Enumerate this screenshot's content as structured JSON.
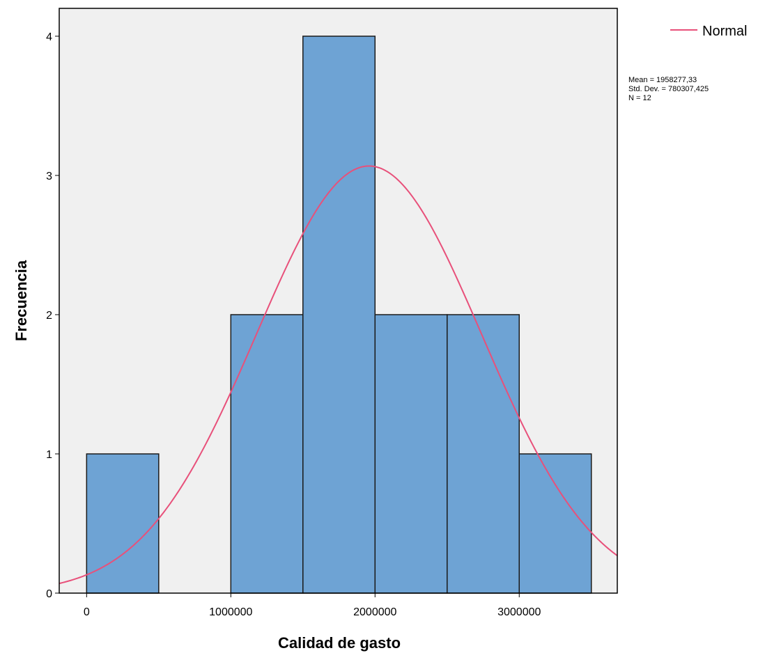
{
  "chart_data": {
    "type": "bar",
    "subtype": "histogram",
    "xlabel": "Calidad de gasto",
    "ylabel": "Frecuencia",
    "bins": [
      {
        "start": 0,
        "end": 500000,
        "count": 1
      },
      {
        "start": 500000,
        "end": 1000000,
        "count": 0
      },
      {
        "start": 1000000,
        "end": 1500000,
        "count": 2
      },
      {
        "start": 1500000,
        "end": 2000000,
        "count": 4
      },
      {
        "start": 2000000,
        "end": 2500000,
        "count": 2
      },
      {
        "start": 2500000,
        "end": 3000000,
        "count": 2
      },
      {
        "start": 3000000,
        "end": 3500000,
        "count": 1
      }
    ],
    "xlim": [
      -190000,
      3680000
    ],
    "ylim": [
      0,
      4.2
    ],
    "x_ticks": [
      0,
      1000000,
      2000000,
      3000000
    ],
    "x_tick_labels": [
      "0",
      "1000000",
      "2000000",
      "3000000"
    ],
    "y_ticks": [
      0,
      1,
      2,
      3,
      4
    ],
    "y_tick_labels": [
      "0",
      "1",
      "2",
      "3",
      "4"
    ],
    "normal_curve": {
      "mean": 1958277.33,
      "std_dev": 780307.425,
      "n": 12,
      "bin_width": 500000,
      "color": "#e8507a"
    },
    "legend": {
      "entries": [
        "Normal"
      ],
      "placement": "top-right outside"
    },
    "stats_lines": [
      "Mean = 1958277,33",
      "Std. Dev. = 780307,425",
      "N = 12"
    ],
    "grid": false,
    "colors": {
      "bar_fill": "#6ea3d4",
      "bar_stroke": "#1a1a1a",
      "plot_bg": "#f0f0f0",
      "curve": "#e8507a"
    }
  }
}
